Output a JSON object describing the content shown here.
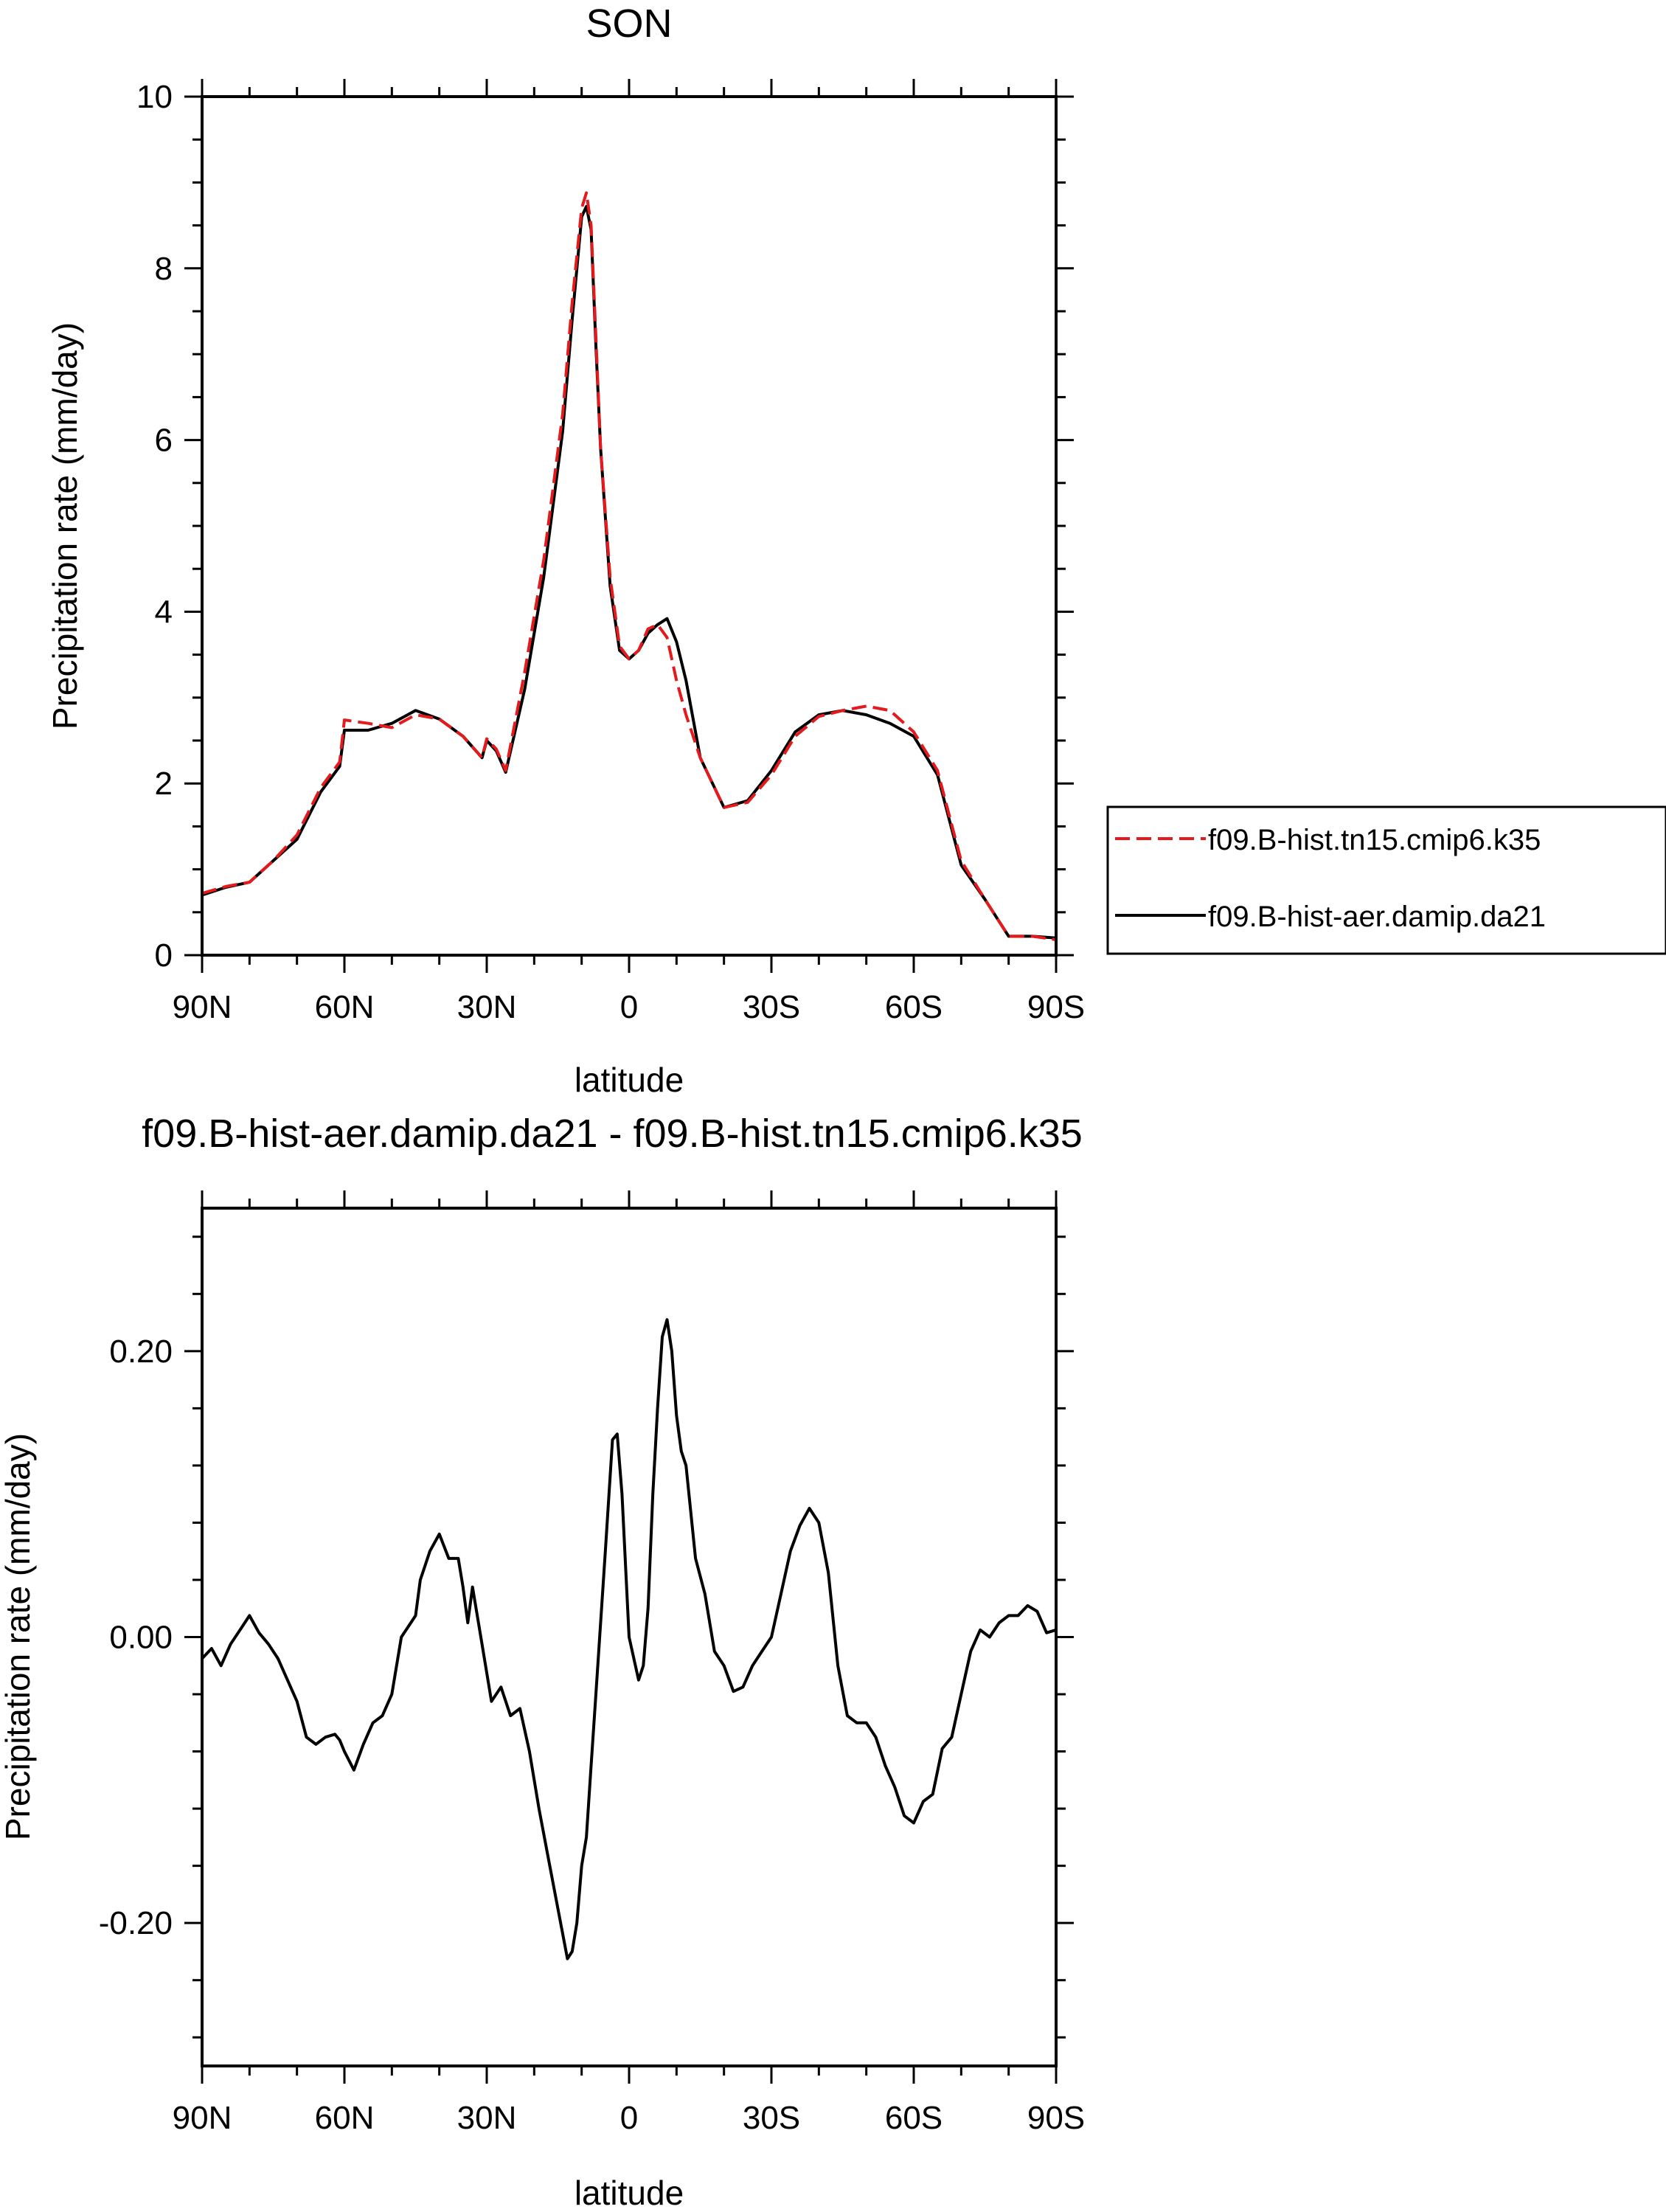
{
  "chart_data": [
    {
      "type": "line",
      "title": "SON",
      "xlabel": "latitude",
      "ylabel": "Precipitation rate (mm/day)",
      "xlim": [
        90,
        -90
      ],
      "ylim": [
        0,
        10
      ],
      "x_ticks": [
        {
          "value": 90,
          "label": "90N"
        },
        {
          "value": 60,
          "label": "60N"
        },
        {
          "value": 30,
          "label": "30N"
        },
        {
          "value": 0,
          "label": "0"
        },
        {
          "value": -30,
          "label": "30S"
        },
        {
          "value": -60,
          "label": "60S"
        },
        {
          "value": -90,
          "label": "90S"
        }
      ],
      "y_ticks": [
        {
          "value": 0,
          "label": "0"
        },
        {
          "value": 2,
          "label": "2"
        },
        {
          "value": 4,
          "label": "4"
        },
        {
          "value": 6,
          "label": "6"
        },
        {
          "value": 8,
          "label": "8"
        },
        {
          "value": 10,
          "label": "10"
        }
      ],
      "x": [
        90,
        85,
        80,
        75,
        70,
        65,
        61,
        60,
        55,
        50,
        45,
        40,
        35,
        31,
        30,
        28,
        26,
        22,
        18,
        14,
        12,
        10,
        9,
        8,
        7,
        6,
        4,
        2,
        0,
        -2,
        -4,
        -6,
        -8,
        -10,
        -12,
        -15,
        -20,
        -25,
        -30,
        -35,
        -40,
        -45,
        -50,
        -55,
        -60,
        -65,
        -70,
        -75,
        -80,
        -85,
        -90
      ],
      "legend": {
        "position": "right"
      },
      "series": [
        {
          "name": "f09.B-hist.tn15.cmip6.k35",
          "color": "#e41a1c",
          "dash": "dashed",
          "values": [
            0.72,
            0.8,
            0.85,
            1.1,
            1.4,
            1.95,
            2.25,
            2.74,
            2.7,
            2.65,
            2.8,
            2.75,
            2.55,
            2.3,
            2.52,
            2.4,
            2.15,
            3.3,
            4.6,
            6.3,
            7.6,
            8.7,
            8.88,
            8.5,
            7.2,
            5.9,
            4.4,
            3.6,
            3.45,
            3.55,
            3.8,
            3.85,
            3.7,
            3.2,
            2.8,
            2.3,
            1.72,
            1.78,
            2.1,
            2.55,
            2.78,
            2.85,
            2.9,
            2.85,
            2.6,
            2.15,
            1.1,
            0.65,
            0.22,
            0.22,
            0.18
          ]
        },
        {
          "name": "f09.B-hist-aer.damip.da21",
          "color": "#000000",
          "dash": "solid",
          "values": [
            0.7,
            0.79,
            0.85,
            1.1,
            1.35,
            1.9,
            2.2,
            2.62,
            2.62,
            2.7,
            2.85,
            2.75,
            2.55,
            2.3,
            2.5,
            2.38,
            2.13,
            3.1,
            4.4,
            6.1,
            7.4,
            8.6,
            8.72,
            8.45,
            7.1,
            5.9,
            4.3,
            3.55,
            3.45,
            3.55,
            3.75,
            3.85,
            3.92,
            3.65,
            3.2,
            2.3,
            1.72,
            1.8,
            2.15,
            2.6,
            2.8,
            2.85,
            2.8,
            2.7,
            2.55,
            2.1,
            1.05,
            0.65,
            0.22,
            0.22,
            0.2
          ]
        }
      ]
    },
    {
      "type": "line",
      "title": "f09.B-hist-aer.damip.da21 - f09.B-hist.tn15.cmip6.k35",
      "xlabel": "latitude",
      "ylabel": "Precipitation rate (mm/day)",
      "xlim": [
        90,
        -90
      ],
      "ylim": [
        -0.3,
        0.3
      ],
      "x_ticks": [
        {
          "value": 90,
          "label": "90N"
        },
        {
          "value": 60,
          "label": "60N"
        },
        {
          "value": 30,
          "label": "30N"
        },
        {
          "value": 0,
          "label": "0"
        },
        {
          "value": -30,
          "label": "30S"
        },
        {
          "value": -60,
          "label": "60S"
        },
        {
          "value": -90,
          "label": "90S"
        }
      ],
      "y_ticks": [
        {
          "value": -0.2,
          "label": "-0.20"
        },
        {
          "value": 0.0,
          "label": "0.00"
        },
        {
          "value": 0.2,
          "label": "0.20"
        }
      ],
      "x": [
        90,
        88,
        86,
        84,
        82,
        80,
        78,
        76,
        74,
        72,
        70,
        68,
        66,
        64,
        62,
        61,
        60,
        58,
        56,
        54,
        52,
        50,
        48,
        46,
        45,
        44,
        43,
        42,
        40,
        38,
        36,
        35,
        34,
        33,
        31,
        29,
        27,
        25,
        23,
        21,
        19,
        17,
        15,
        13,
        12,
        11,
        10,
        9,
        8,
        7,
        5,
        3.5,
        2.5,
        1.5,
        0,
        -2,
        -3,
        -4,
        -5,
        -6,
        -7,
        -8,
        -9,
        -10,
        -11,
        -12,
        -14,
        -16,
        -18,
        -20,
        -22,
        -24,
        -26,
        -28,
        -30,
        -32,
        -34,
        -36,
        -38,
        -40,
        -42,
        -44,
        -46,
        -48,
        -50,
        -52,
        -54,
        -56,
        -58,
        -60,
        -62,
        -64,
        -66,
        -68,
        -70,
        -72,
        -74,
        -76,
        -78,
        -80,
        -82,
        -84,
        -86,
        -88,
        -90
      ],
      "series": [
        {
          "name": "f09.B-hist-aer.damip.da21 - f09.B-hist.tn15.cmip6.k35",
          "color": "#000000",
          "dash": "solid",
          "values": [
            -0.015,
            -0.008,
            -0.02,
            -0.005,
            0.005,
            0.015,
            0.003,
            -0.005,
            -0.015,
            -0.03,
            -0.045,
            -0.07,
            -0.075,
            -0.07,
            -0.068,
            -0.072,
            -0.08,
            -0.093,
            -0.075,
            -0.06,
            -0.055,
            -0.04,
            0.0,
            0.01,
            0.015,
            0.04,
            0.05,
            0.06,
            0.072,
            0.055,
            0.055,
            0.035,
            0.01,
            0.035,
            -0.005,
            -0.045,
            -0.035,
            -0.055,
            -0.05,
            -0.08,
            -0.12,
            -0.155,
            -0.19,
            -0.225,
            -0.22,
            -0.2,
            -0.16,
            -0.14,
            -0.09,
            -0.04,
            0.06,
            0.138,
            0.142,
            0.1,
            0.0,
            -0.03,
            -0.02,
            0.02,
            0.1,
            0.16,
            0.21,
            0.222,
            0.2,
            0.155,
            0.13,
            0.12,
            0.055,
            0.03,
            -0.01,
            -0.02,
            -0.038,
            -0.035,
            -0.02,
            -0.01,
            0.0,
            0.03,
            0.06,
            0.078,
            0.09,
            0.08,
            0.045,
            -0.02,
            -0.055,
            -0.06,
            -0.06,
            -0.07,
            -0.09,
            -0.105,
            -0.125,
            -0.13,
            -0.115,
            -0.11,
            -0.078,
            -0.07,
            -0.04,
            -0.01,
            0.005,
            0.0,
            0.01,
            0.015,
            0.015,
            0.022,
            0.018,
            0.003,
            0.005
          ]
        }
      ]
    }
  ]
}
